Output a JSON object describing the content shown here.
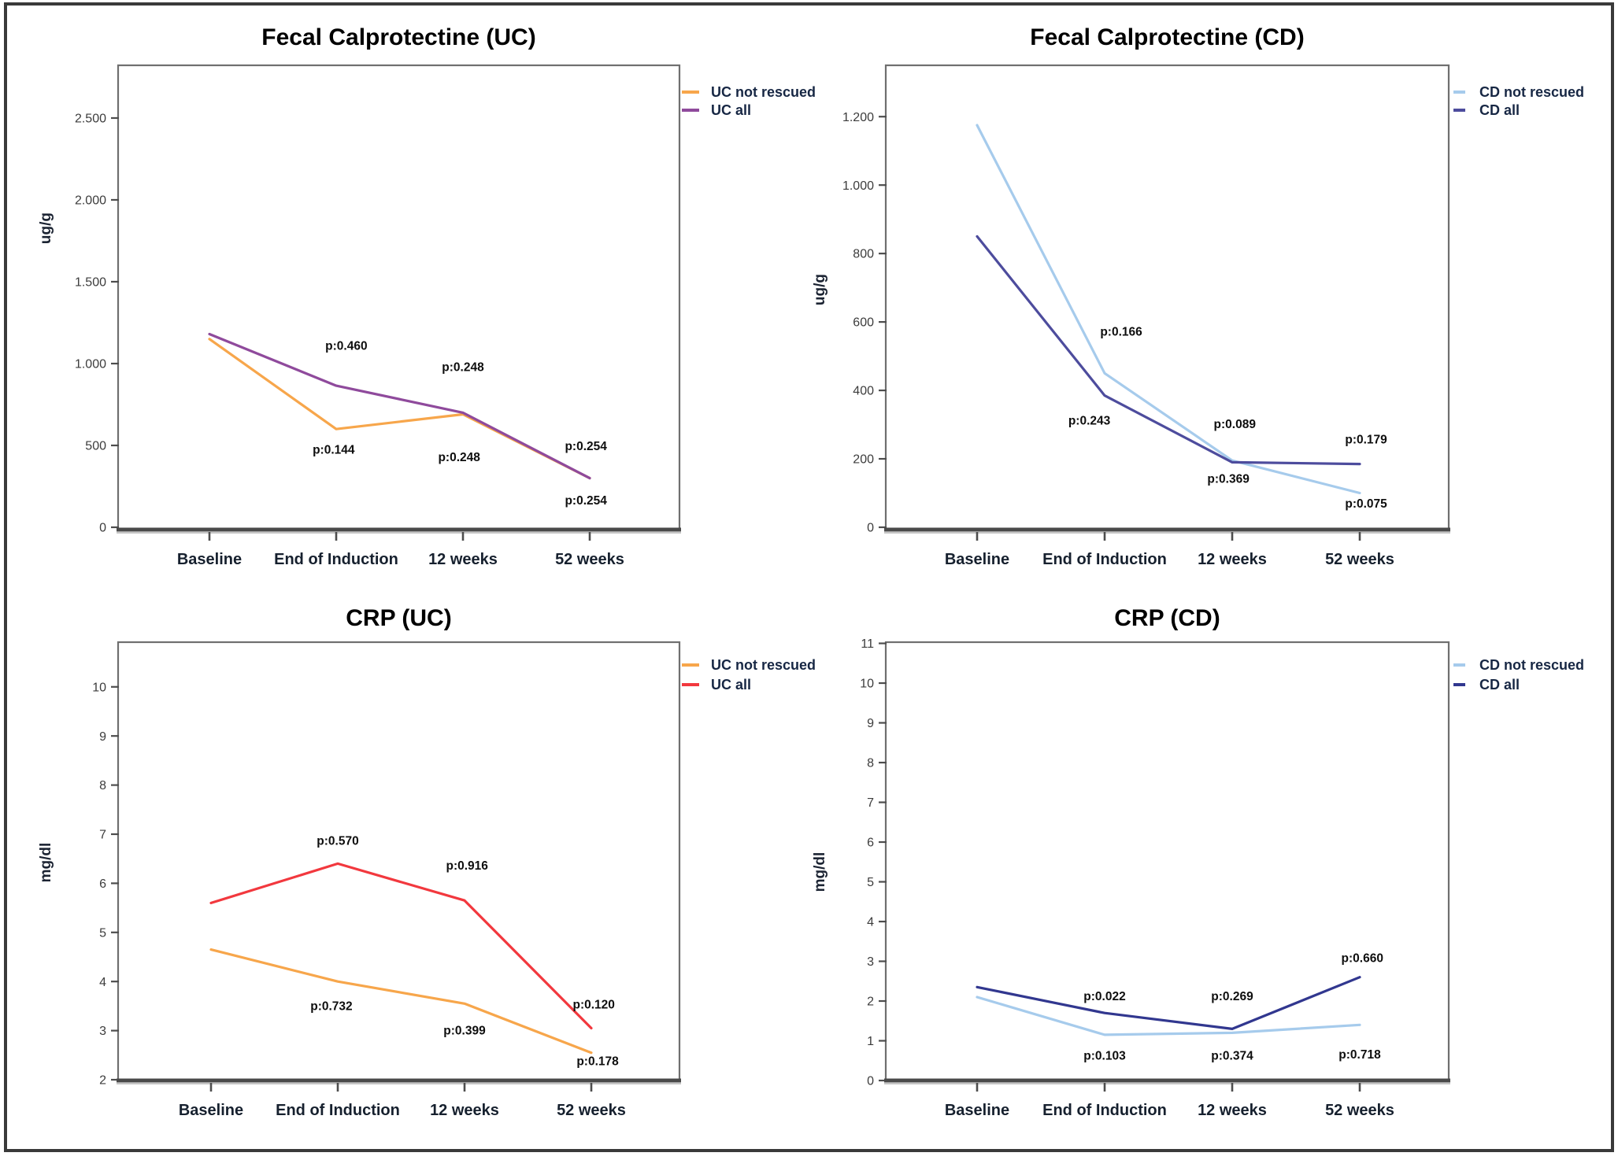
{
  "figure": {
    "outer_border_color": "#3a3a3a",
    "background": "#ffffff"
  },
  "categories": [
    "Baseline",
    "End of Induction",
    "12 weeks",
    "52 weeks"
  ],
  "chart_data": [
    {
      "id": "fc-uc",
      "type": "line",
      "title": "Fecal Calprotectine (UC)",
      "ylabel": "ug/g",
      "xlabel": "",
      "ylim": [
        0,
        2822
      ],
      "grid": false,
      "legend_position": "right-top-outside",
      "categories": [
        "Baseline",
        "End of Induction",
        "12 weeks",
        "52 weeks"
      ],
      "y_ticks": [
        {
          "label": "0",
          "value": 0
        },
        {
          "label": "500",
          "value": 500
        },
        {
          "label": "1.000",
          "value": 1000
        },
        {
          "label": "1.500",
          "value": 1500
        },
        {
          "label": "2.000",
          "value": 2000
        },
        {
          "label": "2.500",
          "value": 2500
        }
      ],
      "series": [
        {
          "name": "UC not rescued",
          "color": "#F7A64B",
          "values": [
            1150,
            600,
            690,
            300
          ]
        },
        {
          "name": "UC all",
          "color": "#8F4A9C",
          "values": [
            1180,
            865,
            700,
            300
          ]
        }
      ],
      "p_values": [
        {
          "text": "p:0.460",
          "cx": 1.08,
          "v": 1085
        },
        {
          "text": "p:0.144",
          "cx": 0.98,
          "v": 450
        },
        {
          "text": "p:0.248",
          "cx": 2.0,
          "v": 955
        },
        {
          "text": "p:0.248",
          "cx": 1.97,
          "v": 405
        },
        {
          "text": "p:0.254",
          "cx": 2.97,
          "v": 470
        },
        {
          "text": "p:0.254",
          "cx": 2.97,
          "v": 140
        }
      ]
    },
    {
      "id": "fc-cd",
      "type": "line",
      "title": "Fecal Calprotectine (CD)",
      "ylabel": "ug/g",
      "xlabel": "",
      "ylim": [
        0,
        1350
      ],
      "grid": false,
      "legend_position": "right-top-outside",
      "categories": [
        "Baseline",
        "End of Induction",
        "12 weeks",
        "52 weeks"
      ],
      "y_ticks": [
        {
          "label": "0",
          "value": 0
        },
        {
          "label": "200",
          "value": 200
        },
        {
          "label": "400",
          "value": 400
        },
        {
          "label": "600",
          "value": 600
        },
        {
          "label": "800",
          "value": 800
        },
        {
          "label": "1.000",
          "value": 1000
        },
        {
          "label": "1.200",
          "value": 1200
        }
      ],
      "series": [
        {
          "name": "CD not rescued",
          "color": "#A6CBEC",
          "values": [
            1175,
            450,
            195,
            100
          ]
        },
        {
          "name": "CD all",
          "color": "#4D4C9D",
          "values": [
            850,
            385,
            190,
            185
          ]
        }
      ],
      "p_values": [
        {
          "text": "p:0.166",
          "cx": 1.13,
          "v": 560
        },
        {
          "text": "p:0.243",
          "cx": 0.88,
          "v": 300
        },
        {
          "text": "p:0.089",
          "cx": 2.02,
          "v": 290
        },
        {
          "text": "p:0.369",
          "cx": 1.97,
          "v": 130
        },
        {
          "text": "p:0.179",
          "cx": 3.05,
          "v": 245
        },
        {
          "text": "p:0.075",
          "cx": 3.05,
          "v": 57
        }
      ]
    },
    {
      "id": "crp-uc",
      "type": "line",
      "title": "CRP (UC)",
      "ylabel": "mg/dl",
      "xlabel": "",
      "ylim": [
        2,
        10.91
      ],
      "grid": false,
      "legend_position": "right-top-outside",
      "categories": [
        "Baseline",
        "End of Induction",
        "12 weeks",
        "52 weeks"
      ],
      "y_ticks": [
        {
          "label": "2",
          "value": 2
        },
        {
          "label": "3",
          "value": 3
        },
        {
          "label": "4",
          "value": 4
        },
        {
          "label": "5",
          "value": 5
        },
        {
          "label": "6",
          "value": 6
        },
        {
          "label": "7",
          "value": 7
        },
        {
          "label": "8",
          "value": 8
        },
        {
          "label": "9",
          "value": 9
        },
        {
          "label": "10",
          "value": 10
        }
      ],
      "series": [
        {
          "name": "UC not rescued",
          "color": "#F7A64B",
          "values": [
            4.65,
            4.0,
            3.55,
            2.55
          ]
        },
        {
          "name": "UC all",
          "color": "#F2383E",
          "values": [
            5.6,
            6.4,
            5.65,
            3.05
          ]
        }
      ],
      "p_values": [
        {
          "text": "p:0.570",
          "cx": 1.0,
          "v": 6.78
        },
        {
          "text": "p:0.732",
          "cx": 0.95,
          "v": 3.42
        },
        {
          "text": "p:0.916",
          "cx": 2.02,
          "v": 6.28
        },
        {
          "text": "p:0.399",
          "cx": 2.0,
          "v": 2.92
        },
        {
          "text": "p:0.120",
          "cx": 3.02,
          "v": 3.45
        },
        {
          "text": "p:0.178",
          "cx": 3.05,
          "v": 2.3
        }
      ]
    },
    {
      "id": "crp-cd",
      "type": "line",
      "title": "CRP (CD)",
      "ylabel": "mg/dl",
      "xlabel": "",
      "ylim": [
        0,
        11.03
      ],
      "grid": false,
      "legend_position": "right-top-outside",
      "categories": [
        "Baseline",
        "End of Induction",
        "12 weeks",
        "52 weeks"
      ],
      "y_ticks": [
        {
          "label": "0",
          "value": 0
        },
        {
          "label": "1",
          "value": 1
        },
        {
          "label": "2",
          "value": 2
        },
        {
          "label": "3",
          "value": 3
        },
        {
          "label": "4",
          "value": 4
        },
        {
          "label": "5",
          "value": 5
        },
        {
          "label": "6",
          "value": 6
        },
        {
          "label": "7",
          "value": 7
        },
        {
          "label": "8",
          "value": 8
        },
        {
          "label": "9",
          "value": 9
        },
        {
          "label": "10",
          "value": 10
        },
        {
          "label": "11",
          "value": 11
        }
      ],
      "series": [
        {
          "name": "CD not rescued",
          "color": "#A6CBEC",
          "values": [
            2.1,
            1.15,
            1.2,
            1.4
          ]
        },
        {
          "name": "CD all",
          "color": "#31378F",
          "values": [
            2.35,
            1.7,
            1.3,
            2.6
          ]
        }
      ],
      "p_values": [
        {
          "text": "p:0.022",
          "cx": 1.0,
          "v": 2.02
        },
        {
          "text": "p:0.103",
          "cx": 1.0,
          "v": 0.52
        },
        {
          "text": "p:0.269",
          "cx": 2.0,
          "v": 2.02
        },
        {
          "text": "p:0.374",
          "cx": 2.0,
          "v": 0.52
        },
        {
          "text": "p:0.660",
          "cx": 3.02,
          "v": 2.98
        },
        {
          "text": "p:0.718",
          "cx": 3.0,
          "v": 0.55
        }
      ]
    }
  ]
}
